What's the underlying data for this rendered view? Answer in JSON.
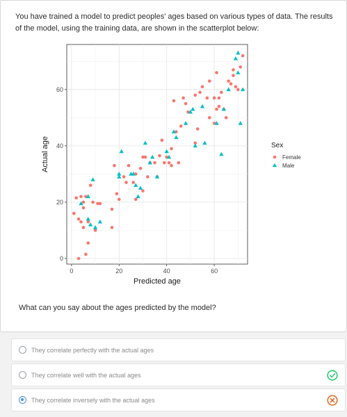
{
  "prompt": "You have trained a model to predict peoples' ages based on various types of data. The results of the model, using the training data, are shown in the scatterplot below:",
  "question": "What can you say about the ages predicted by the model?",
  "choices": [
    {
      "label": "They correlate perfectly with the actual ages",
      "selected": false,
      "status": ""
    },
    {
      "label": "They correlate well with the actual ages",
      "selected": false,
      "status": "correct"
    },
    {
      "label": "They correlate inversely with the actual ages",
      "selected": true,
      "status": "incorrect"
    }
  ],
  "status_colors": {
    "correct": "#2ecc71",
    "incorrect": "#e8702a"
  },
  "chart_data": {
    "type": "scatter",
    "xlabel": "Predicted age",
    "ylabel": "Actual age",
    "xlim": [
      -2,
      74
    ],
    "ylim": [
      -2,
      76
    ],
    "xticks": [
      0,
      20,
      40,
      60
    ],
    "yticks": [
      0,
      20,
      40,
      60
    ],
    "grid": true,
    "legend": {
      "title": "Sex",
      "placement": "right"
    },
    "series": [
      {
        "name": "Female",
        "marker": "circle",
        "color": "#f8766d",
        "points": [
          [
            1,
            16
          ],
          [
            2,
            21.5
          ],
          [
            3,
            14
          ],
          [
            3,
            0
          ],
          [
            4,
            13
          ],
          [
            4,
            22
          ],
          [
            5,
            11
          ],
          [
            5,
            18
          ],
          [
            5,
            20
          ],
          [
            6,
            22
          ],
          [
            6,
            1.5
          ],
          [
            7,
            5.5
          ],
          [
            7,
            13
          ],
          [
            8,
            26
          ],
          [
            9,
            20
          ],
          [
            10,
            10
          ],
          [
            11,
            19.5
          ],
          [
            12,
            19.5
          ],
          [
            17,
            17.5
          ],
          [
            17,
            11
          ],
          [
            18,
            33
          ],
          [
            19,
            23
          ],
          [
            20,
            21
          ],
          [
            22,
            29
          ],
          [
            23,
            27
          ],
          [
            24,
            33
          ],
          [
            26,
            27
          ],
          [
            27,
            30
          ],
          [
            27,
            21
          ],
          [
            29,
            32
          ],
          [
            30,
            24
          ],
          [
            30,
            36
          ],
          [
            31,
            36
          ],
          [
            32,
            29
          ],
          [
            33,
            34
          ],
          [
            35,
            34
          ],
          [
            36,
            29
          ],
          [
            37,
            36.5
          ],
          [
            38,
            42
          ],
          [
            39,
            34
          ],
          [
            40,
            36
          ],
          [
            41,
            34
          ],
          [
            42,
            39
          ],
          [
            42,
            33
          ],
          [
            43,
            56
          ],
          [
            44,
            45
          ],
          [
            45,
            34
          ],
          [
            46,
            47
          ],
          [
            47,
            57
          ],
          [
            48,
            55
          ],
          [
            49,
            52
          ],
          [
            52,
            58
          ],
          [
            52,
            41
          ],
          [
            53,
            46
          ],
          [
            54,
            59
          ],
          [
            55,
            61
          ],
          [
            57,
            57
          ],
          [
            58,
            50
          ],
          [
            58,
            63
          ],
          [
            60,
            48
          ],
          [
            60,
            57
          ],
          [
            61,
            53
          ],
          [
            61,
            66
          ],
          [
            62,
            57
          ],
          [
            62,
            54
          ],
          [
            63,
            59
          ],
          [
            64,
            53
          ],
          [
            65,
            50
          ],
          [
            66,
            63
          ],
          [
            67,
            62
          ],
          [
            68,
            65
          ],
          [
            68,
            67
          ],
          [
            69,
            61
          ],
          [
            70,
            60
          ],
          [
            71,
            68
          ],
          [
            72,
            72
          ]
        ]
      },
      {
        "name": "Male",
        "marker": "triangle",
        "color": "#00bfc4",
        "points": [
          [
            4,
            19.5
          ],
          [
            7,
            14
          ],
          [
            7,
            22
          ],
          [
            8,
            12
          ],
          [
            9,
            28
          ],
          [
            10,
            11
          ],
          [
            12,
            13
          ],
          [
            20,
            30
          ],
          [
            20,
            29
          ],
          [
            21,
            38
          ],
          [
            25,
            30
          ],
          [
            26,
            30
          ],
          [
            27,
            26
          ],
          [
            28,
            22
          ],
          [
            29,
            25
          ],
          [
            31,
            41
          ],
          [
            33,
            34
          ],
          [
            34,
            36
          ],
          [
            36,
            29
          ],
          [
            40,
            38
          ],
          [
            41,
            36
          ],
          [
            43,
            45
          ],
          [
            44,
            43
          ],
          [
            48,
            48
          ],
          [
            50,
            52
          ],
          [
            51,
            53
          ],
          [
            52,
            40
          ],
          [
            55,
            54
          ],
          [
            56,
            41
          ],
          [
            61,
            48
          ],
          [
            63,
            37
          ],
          [
            64,
            53
          ],
          [
            66,
            60
          ],
          [
            69,
            71
          ],
          [
            70,
            73
          ],
          [
            70,
            66
          ],
          [
            71,
            48
          ],
          [
            72,
            60
          ]
        ]
      }
    ]
  }
}
